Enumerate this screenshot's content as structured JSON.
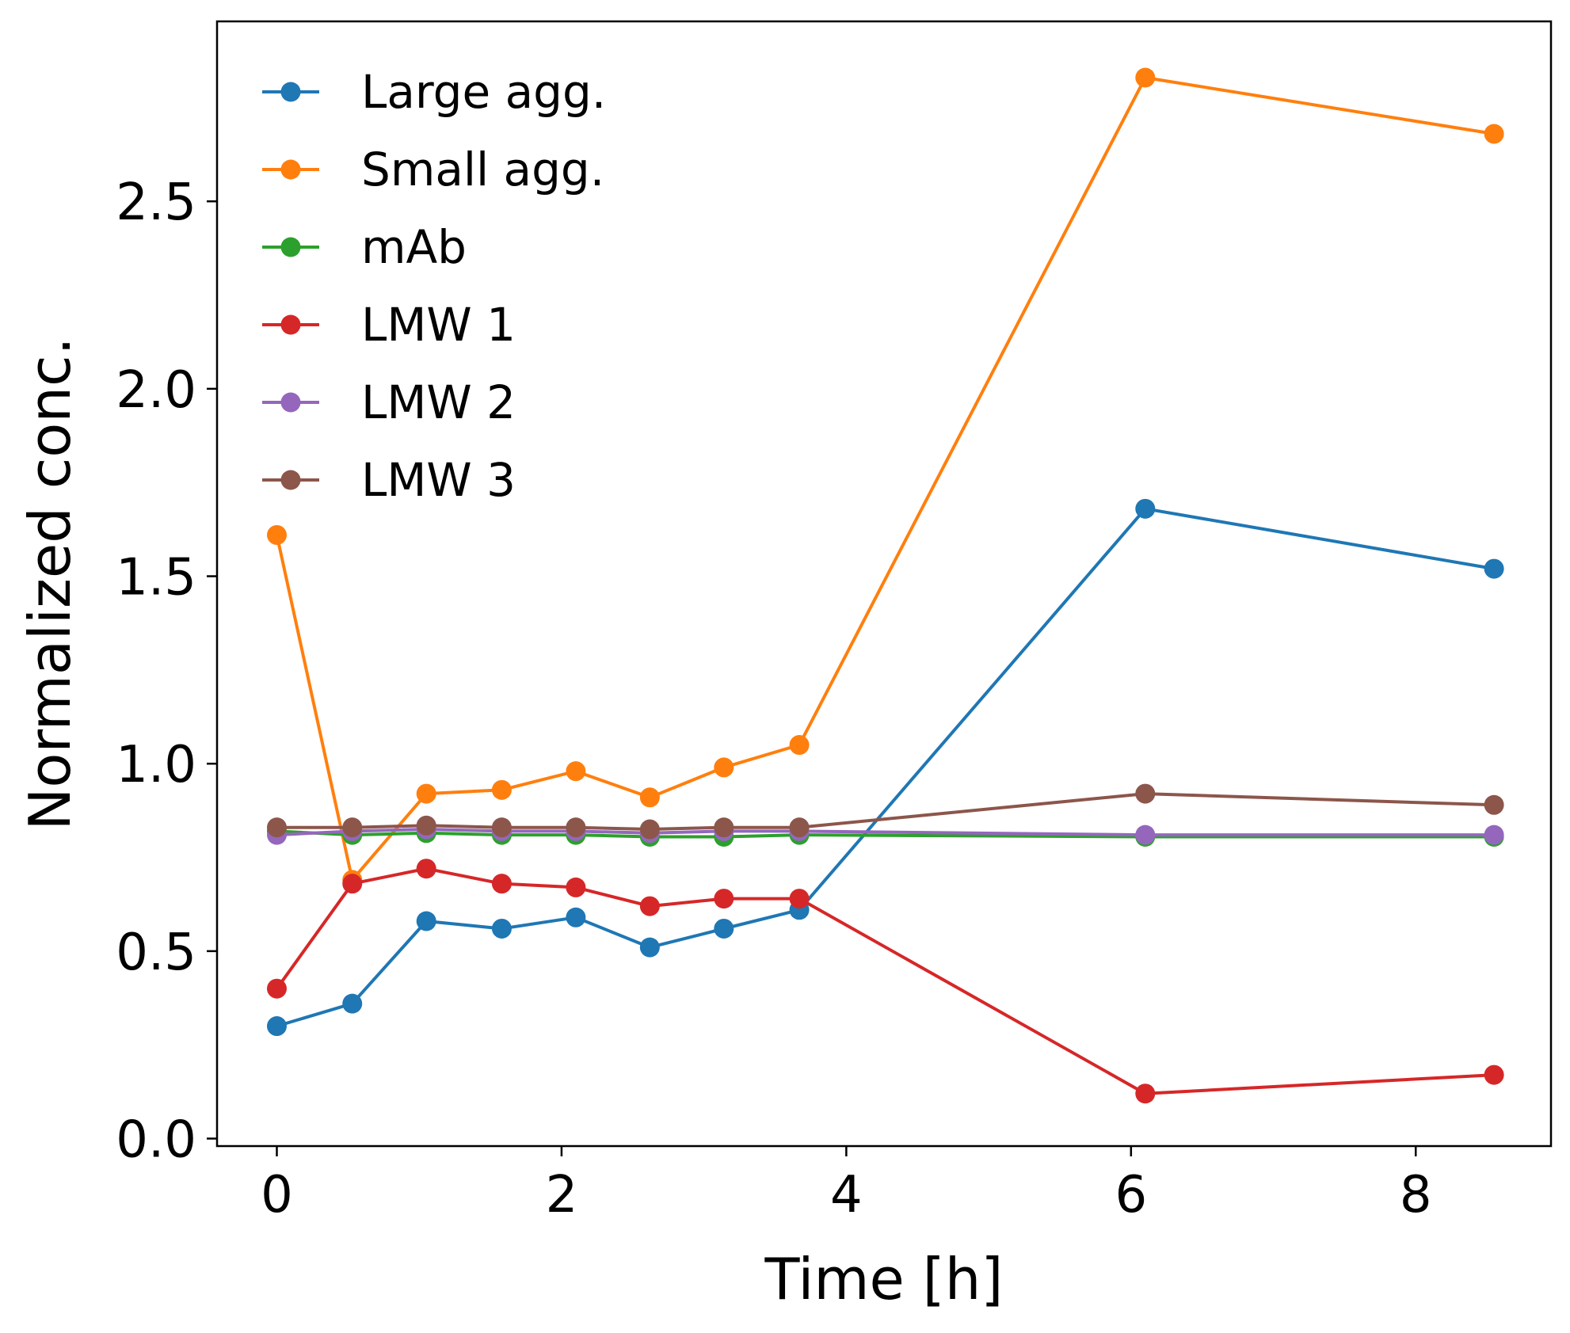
{
  "chart_data": {
    "type": "line",
    "title": "",
    "xlabel": "Time [h]",
    "ylabel": "Normalized conc.",
    "xlim": [
      -0.42,
      8.95
    ],
    "ylim": [
      -0.02,
      2.98
    ],
    "xticks": [
      0,
      2,
      4,
      6,
      8
    ],
    "xtick_labels": [
      "0",
      "2",
      "4",
      "6",
      "8"
    ],
    "yticks": [
      0.0,
      0.5,
      1.0,
      1.5,
      2.0,
      2.5
    ],
    "ytick_labels": [
      "0.0",
      "0.5",
      "1.0",
      "1.5",
      "2.0",
      "2.5"
    ],
    "grid": false,
    "legend_position": "top-left",
    "x": [
      0,
      0.53,
      1.05,
      1.58,
      2.1,
      2.62,
      3.14,
      3.67,
      6.1,
      8.55
    ],
    "series": [
      {
        "name": "Large agg.",
        "color": "#1f77b4",
        "values": [
          0.3,
          0.36,
          0.58,
          0.56,
          0.59,
          0.51,
          0.56,
          0.61,
          1.68,
          1.52
        ]
      },
      {
        "name": "Small agg.",
        "color": "#ff7f0e",
        "values": [
          1.61,
          0.69,
          0.92,
          0.93,
          0.98,
          0.91,
          0.99,
          1.05,
          2.83,
          2.68
        ]
      },
      {
        "name": "mAb",
        "color": "#2ca02c",
        "values": [
          0.82,
          0.81,
          0.815,
          0.81,
          0.81,
          0.805,
          0.805,
          0.81,
          0.805,
          0.805
        ]
      },
      {
        "name": "LMW 1",
        "color": "#d62728",
        "values": [
          0.4,
          0.68,
          0.72,
          0.68,
          0.67,
          0.62,
          0.64,
          0.64,
          0.12,
          0.17
        ]
      },
      {
        "name": "LMW 2",
        "color": "#9467bd",
        "values": [
          0.81,
          0.82,
          0.825,
          0.82,
          0.82,
          0.815,
          0.82,
          0.82,
          0.81,
          0.81
        ]
      },
      {
        "name": "LMW 3",
        "color": "#8c564b",
        "values": [
          0.83,
          0.83,
          0.835,
          0.83,
          0.83,
          0.825,
          0.83,
          0.83,
          0.92,
          0.89
        ]
      }
    ]
  }
}
